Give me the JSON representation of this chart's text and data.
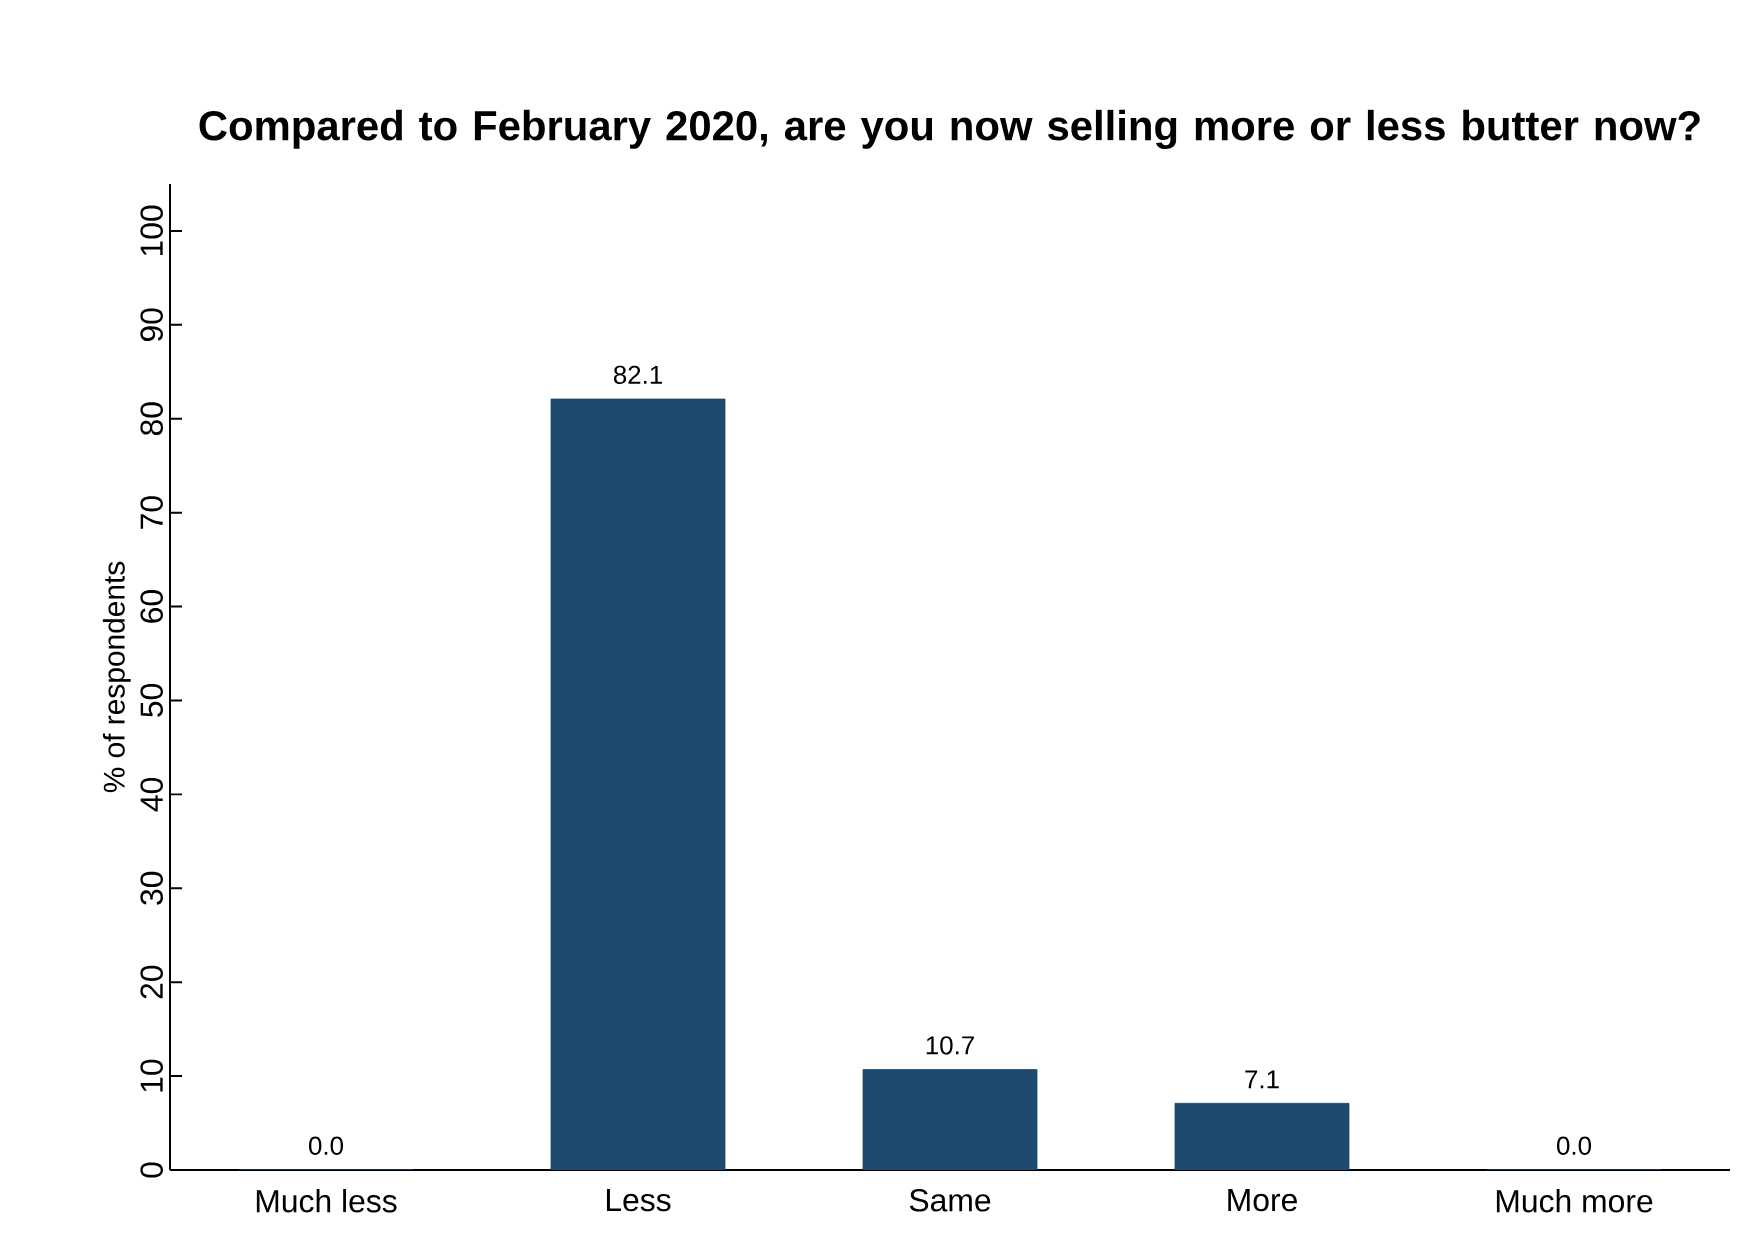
{
  "chart_data": {
    "type": "bar",
    "title": "Compared to February 2020, are you now selling more or less butter now?",
    "ylabel": "% of respondents",
    "categories": [
      "Much less",
      "Less",
      "Same",
      "More",
      "Much more"
    ],
    "values": [
      0.0,
      82.1,
      10.7,
      7.1,
      0.0
    ],
    "value_labels": [
      "0.0",
      "82.1",
      "10.7",
      "7.1",
      "0.0"
    ],
    "color": "#1f4a70",
    "ylim": [
      0,
      105
    ],
    "yticks": [
      0,
      10,
      20,
      30,
      40,
      50,
      60,
      70,
      80,
      90,
      100
    ]
  }
}
